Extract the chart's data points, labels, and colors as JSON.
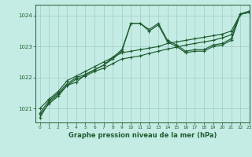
{
  "title": "Graphe pression niveau de la mer (hPa)",
  "background_color": "#c5ece4",
  "grid_color": "#9dccc4",
  "line_color": "#1e5c30",
  "xlim": [
    -0.5,
    23
  ],
  "ylim": [
    1020.55,
    1024.35
  ],
  "yticks": [
    1021,
    1022,
    1023,
    1024
  ],
  "xticks": [
    0,
    1,
    2,
    3,
    4,
    5,
    6,
    7,
    8,
    9,
    10,
    11,
    12,
    13,
    14,
    15,
    16,
    17,
    18,
    19,
    20,
    21,
    22,
    23
  ],
  "series": [
    [
      1020.7,
      1021.2,
      1021.45,
      1021.75,
      1021.85,
      1022.1,
      1022.25,
      1022.4,
      1022.65,
      1022.9,
      1023.75,
      1023.75,
      1023.55,
      1023.75,
      1023.2,
      1023.05,
      1022.85,
      1022.9,
      1022.9,
      1023.05,
      1023.1,
      1023.25,
      1024.05,
      1024.1
    ],
    [
      1020.85,
      1021.25,
      1021.5,
      1021.8,
      1022.0,
      1022.1,
      1022.25,
      1022.4,
      1022.6,
      1022.85,
      1023.75,
      1023.75,
      1023.5,
      1023.7,
      1023.15,
      1023.0,
      1022.8,
      1022.85,
      1022.85,
      1023.0,
      1023.05,
      1023.2,
      1024.05,
      1024.1
    ],
    [
      1021.0,
      1021.3,
      1021.55,
      1021.9,
      1022.05,
      1022.2,
      1022.35,
      1022.5,
      1022.65,
      1022.8,
      1022.85,
      1022.9,
      1022.95,
      1023.0,
      1023.1,
      1023.15,
      1023.2,
      1023.25,
      1023.3,
      1023.35,
      1023.4,
      1023.5,
      1024.05,
      1024.15
    ],
    [
      1020.8,
      1021.15,
      1021.4,
      1021.75,
      1021.95,
      1022.05,
      1022.2,
      1022.3,
      1022.45,
      1022.6,
      1022.65,
      1022.7,
      1022.78,
      1022.85,
      1022.92,
      1022.98,
      1023.05,
      1023.1,
      1023.15,
      1023.2,
      1023.28,
      1023.38,
      1024.05,
      1024.1
    ]
  ]
}
